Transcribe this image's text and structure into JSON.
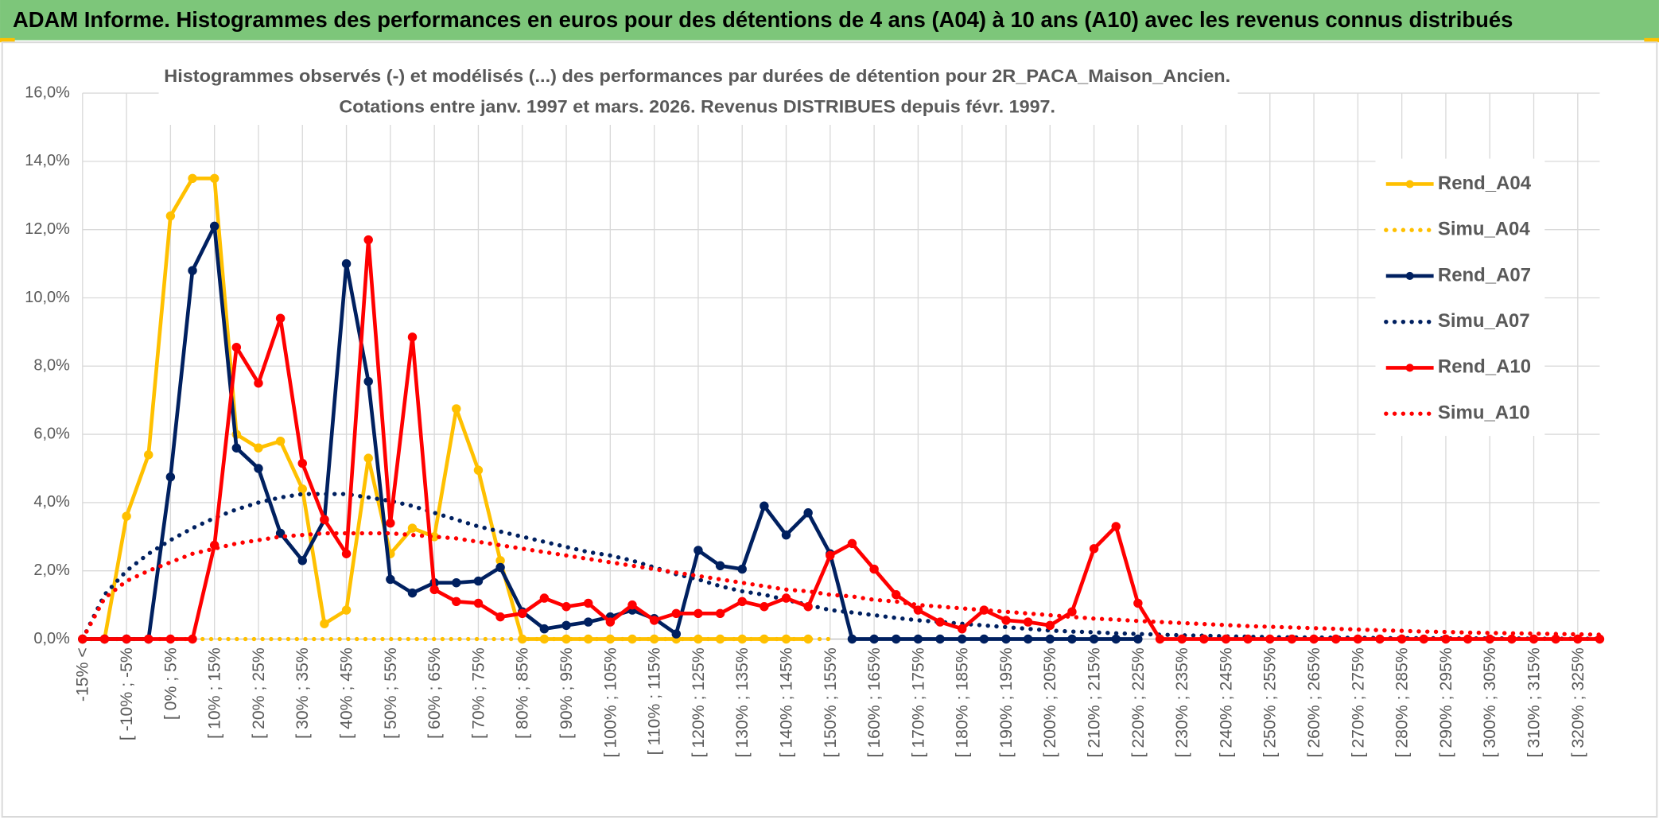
{
  "header": {
    "title": "ADAM Informe. Histogrammes des performances en euros pour des détentions de 4 ans (A04) à 10 ans (A10) avec les revenus connus distribués"
  },
  "chart_data": {
    "type": "line",
    "title": [
      "Histogrammes observés (-) et modélisés (...) des performances par durées de détention pour 2R_PACA_Maison_Ancien.",
      "Cotations entre janv. 1997 et mars. 2026. Revenus DISTRIBUES depuis févr. 1997."
    ],
    "categories": [
      "-15% <",
      null,
      "[ -10% ; -5%",
      null,
      "[ 0% ; 5%",
      null,
      "[ 10% ; 15%",
      null,
      "[ 20% ; 25%",
      null,
      "[ 30% ; 35%",
      null,
      "[ 40% ; 45%",
      null,
      "[ 50% ; 55%",
      null,
      "[ 60% ; 65%",
      null,
      "[ 70% ; 75%",
      null,
      "[ 80% ; 85%",
      null,
      "[ 90% ; 95%",
      null,
      "[ 100% ; 105%",
      null,
      "[ 110% ; 115%",
      null,
      "[ 120% ; 125%",
      null,
      "[ 130% ; 135%",
      null,
      "[ 140% ; 145%",
      null,
      "[ 150% ; 155%",
      null,
      "[ 160% ; 165%",
      null,
      "[ 170% ; 175%",
      null,
      "[ 180% ; 185%",
      null,
      "[ 190% ; 195%",
      null,
      "[ 200% ; 205%",
      null,
      "[ 210% ; 215%",
      null,
      "[ 220% ; 225%",
      null,
      "[ 230% ; 235%",
      null,
      "[ 240% ; 245%",
      null,
      "[ 250% ; 255%",
      null,
      "[ 260% ; 265%",
      null,
      "[ 270% ; 275%",
      null,
      "[ 280% ; 285%",
      null,
      "[ 290% ; 295%",
      null,
      "[ 300% ; 305%",
      null,
      "[ 310% ; 315%",
      null,
      "[ 320% ; 325%",
      null
    ],
    "series": [
      {
        "name": "Rend_A04",
        "color": "#ffc000",
        "line_style": "solid",
        "markers": true,
        "values": [
          0,
          0,
          3.6,
          5.4,
          12.4,
          13.5,
          13.5,
          6.0,
          5.6,
          5.8,
          4.4,
          0.45,
          0.85,
          5.3,
          2.5,
          3.25,
          3.0,
          6.75,
          4.95,
          2.3,
          0,
          0,
          0,
          0,
          0,
          0,
          0,
          0,
          0,
          0,
          0,
          0,
          0,
          0,
          null,
          null,
          null,
          null,
          null,
          null,
          null,
          null,
          null,
          null,
          null,
          null,
          null,
          null,
          null,
          null,
          null,
          null,
          null,
          null,
          null,
          null,
          null,
          null,
          null,
          null,
          null,
          null,
          null,
          null,
          null,
          null,
          null,
          null,
          null,
          null
        ]
      },
      {
        "name": "Simu_A04",
        "color": "#ffc000",
        "line_style": "dotted",
        "markers": false,
        "values": [
          0,
          0,
          0,
          0,
          0,
          0,
          0,
          0,
          0,
          0,
          0,
          0,
          0,
          0,
          0,
          0,
          0,
          0,
          0,
          0,
          0,
          0,
          0,
          0,
          0,
          0,
          0,
          0,
          0,
          0,
          0,
          0,
          0,
          0,
          0,
          null,
          null,
          null,
          null,
          null,
          null,
          null,
          null,
          null,
          null,
          null,
          null,
          null,
          null,
          null,
          null,
          null,
          null,
          null,
          null,
          null,
          null,
          null,
          null,
          null,
          null,
          null,
          null,
          null,
          null,
          null,
          null,
          null,
          null,
          null
        ]
      },
      {
        "name": "Rend_A07",
        "color": "#002060",
        "line_style": "solid",
        "markers": true,
        "values": [
          0,
          0,
          0,
          0,
          4.75,
          10.8,
          12.1,
          5.6,
          5.0,
          3.1,
          2.3,
          3.5,
          11.0,
          7.55,
          1.75,
          1.35,
          1.65,
          1.65,
          1.7,
          2.1,
          0.8,
          0.3,
          0.4,
          0.5,
          0.65,
          0.85,
          0.6,
          0.15,
          2.6,
          2.15,
          2.05,
          3.9,
          3.05,
          3.7,
          2.5,
          0,
          0,
          0,
          0,
          0,
          0,
          0,
          0,
          0,
          0,
          0,
          0,
          0,
          0,
          null,
          null,
          null,
          null,
          null,
          null,
          null,
          null,
          null,
          null,
          null,
          null,
          null,
          null,
          null,
          null,
          null,
          null,
          null,
          null,
          null
        ]
      },
      {
        "name": "Simu_A07",
        "color": "#002060",
        "line_style": "dotted",
        "markers": false,
        "values": [
          0,
          1.3,
          2.0,
          2.5,
          2.9,
          3.25,
          3.55,
          3.8,
          4.0,
          4.15,
          4.25,
          4.25,
          4.25,
          4.15,
          4.05,
          3.9,
          3.7,
          3.5,
          3.3,
          3.15,
          3.0,
          2.85,
          2.7,
          2.55,
          2.45,
          2.3,
          2.1,
          1.9,
          1.75,
          1.55,
          1.4,
          1.3,
          1.15,
          1.0,
          0.85,
          0.78,
          0.7,
          0.62,
          0.55,
          0.5,
          0.45,
          0.4,
          0.35,
          0.3,
          0.25,
          0.22,
          0.2,
          0.17,
          0.15,
          0.13,
          0.11,
          0.1,
          0.08,
          0.07,
          0.06,
          0.05,
          0.05,
          0.04,
          0.04,
          0.03,
          0.03,
          0.03,
          0.02,
          0.02,
          0.02,
          0.02,
          0.01,
          0.01,
          0.01,
          0.01
        ]
      },
      {
        "name": "Rend_A10",
        "color": "#ff0000",
        "line_style": "solid",
        "markers": true,
        "values": [
          0,
          0,
          0,
          0,
          0,
          0,
          2.75,
          8.55,
          7.5,
          9.4,
          5.15,
          3.5,
          2.5,
          11.7,
          3.4,
          8.85,
          1.45,
          1.1,
          1.05,
          0.65,
          0.75,
          1.2,
          0.95,
          1.05,
          0.5,
          1.0,
          0.55,
          0.75,
          0.75,
          0.75,
          1.1,
          0.95,
          1.2,
          0.95,
          2.45,
          2.8,
          2.05,
          1.3,
          0.85,
          0.5,
          0.3,
          0.85,
          0.55,
          0.5,
          0.4,
          0.8,
          2.65,
          3.3,
          1.05,
          0,
          0,
          0,
          0,
          0,
          0,
          0,
          0,
          0,
          0,
          0,
          0,
          0,
          0,
          0,
          0,
          0,
          0,
          0,
          0,
          0
        ]
      },
      {
        "name": "Simu_A10",
        "color": "#ff0000",
        "line_style": "dotted",
        "markers": false,
        "values": [
          0,
          1.2,
          1.7,
          2.0,
          2.25,
          2.5,
          2.65,
          2.8,
          2.9,
          3.0,
          3.05,
          3.1,
          3.1,
          3.1,
          3.1,
          3.05,
          3.0,
          2.95,
          2.85,
          2.75,
          2.65,
          2.55,
          2.45,
          2.35,
          2.25,
          2.15,
          2.05,
          1.95,
          1.85,
          1.75,
          1.65,
          1.55,
          1.45,
          1.4,
          1.3,
          1.25,
          1.15,
          1.1,
          1.0,
          0.95,
          0.9,
          0.85,
          0.8,
          0.75,
          0.7,
          0.65,
          0.6,
          0.57,
          0.53,
          0.5,
          0.47,
          0.44,
          0.41,
          0.38,
          0.36,
          0.34,
          0.32,
          0.3,
          0.28,
          0.26,
          0.24,
          0.22,
          0.21,
          0.19,
          0.18,
          0.17,
          0.16,
          0.15,
          0.14,
          0.13
        ]
      }
    ],
    "ylim": [
      0,
      16
    ],
    "yticks": [
      {
        "value": 0,
        "label": "0,0%"
      },
      {
        "value": 2,
        "label": "2,0%"
      },
      {
        "value": 4,
        "label": "4,0%"
      },
      {
        "value": 6,
        "label": "6,0%"
      },
      {
        "value": 8,
        "label": "8,0%"
      },
      {
        "value": 10,
        "label": "10,0%"
      },
      {
        "value": 12,
        "label": "12,0%"
      },
      {
        "value": 14,
        "label": "14,0%"
      },
      {
        "value": 16,
        "label": "16,0%"
      }
    ],
    "grid": true,
    "legend": "right"
  }
}
